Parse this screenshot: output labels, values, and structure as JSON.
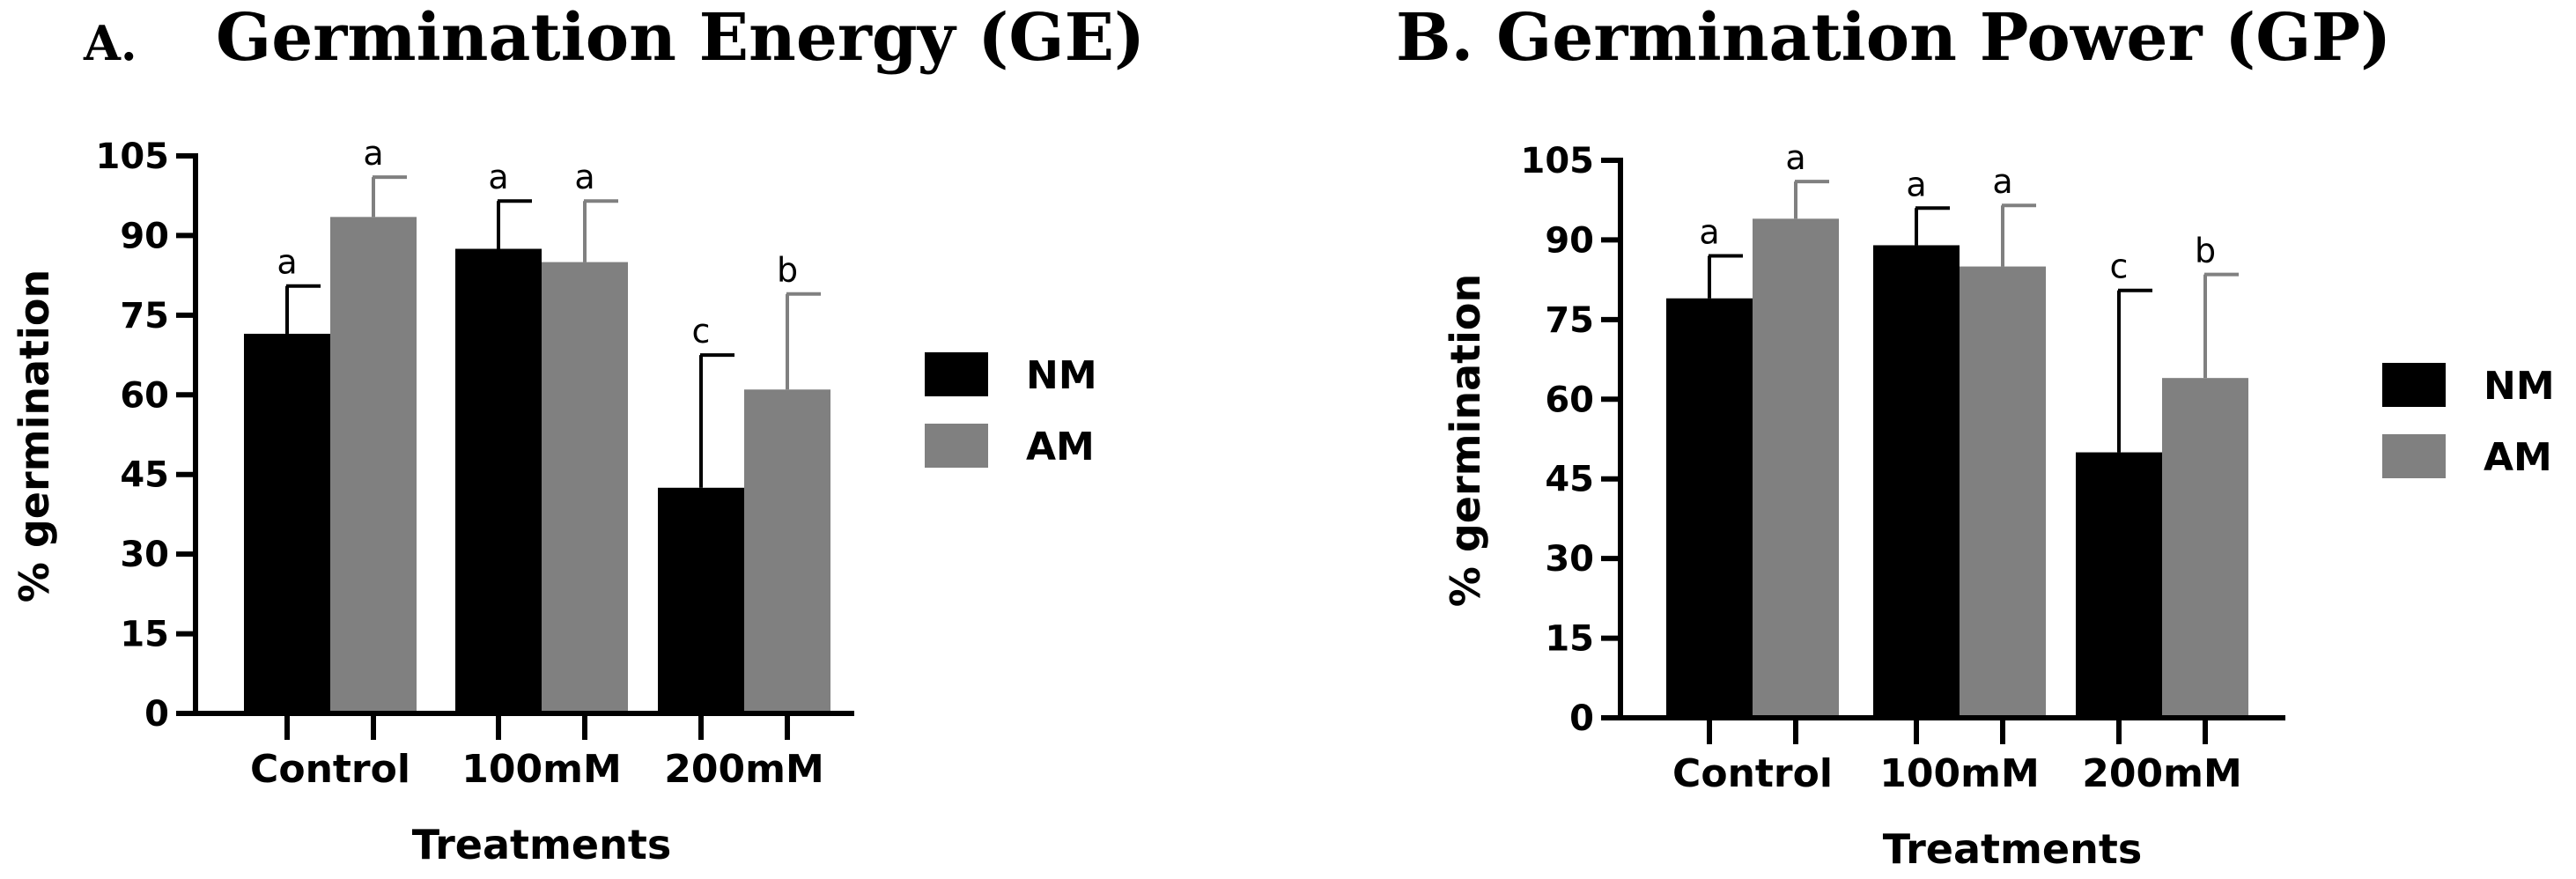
{
  "chart_data": [
    {
      "type": "bar",
      "panel_letter": "A.",
      "title": "Germination Energy (GE)",
      "xlabel": "Treatments",
      "ylabel": "% germination",
      "ylim": [
        0,
        105
      ],
      "yticks": [
        "0",
        "15",
        "30",
        "45",
        "60",
        "75",
        "90",
        "105"
      ],
      "categories": [
        "Control",
        "100mM",
        "200mM"
      ],
      "legend_position": "right",
      "series": [
        {
          "name": "NM",
          "color": "#000000",
          "values": [
            71.5,
            87.5,
            42.5
          ],
          "errors": [
            9,
            9,
            25
          ],
          "letters": [
            "a",
            "a",
            "c"
          ]
        },
        {
          "name": "AM",
          "color": "#808080",
          "values": [
            93.5,
            85,
            61
          ],
          "errors": [
            7.5,
            11.5,
            18
          ],
          "letters": [
            "a",
            "a",
            "b"
          ]
        }
      ]
    },
    {
      "type": "bar",
      "panel_letter": "",
      "title": "B. Germination Power (GP)",
      "xlabel": "Treatments",
      "ylabel": "% germination",
      "ylim": [
        0,
        105
      ],
      "yticks": [
        "0",
        "15",
        "30",
        "45",
        "60",
        "75",
        "90",
        "105"
      ],
      "categories": [
        "Control",
        "100mM",
        "200mM"
      ],
      "legend_position": "right",
      "series": [
        {
          "name": "NM",
          "color": "#000000",
          "values": [
            79,
            89,
            50
          ],
          "errors": [
            8,
            7,
            30.5
          ],
          "letters": [
            "a",
            "a",
            "c"
          ]
        },
        {
          "name": "AM",
          "color": "#808080",
          "values": [
            94,
            85,
            64
          ],
          "errors": [
            7,
            11.5,
            19.5
          ],
          "letters": [
            "a",
            "a",
            "b"
          ]
        }
      ]
    }
  ]
}
